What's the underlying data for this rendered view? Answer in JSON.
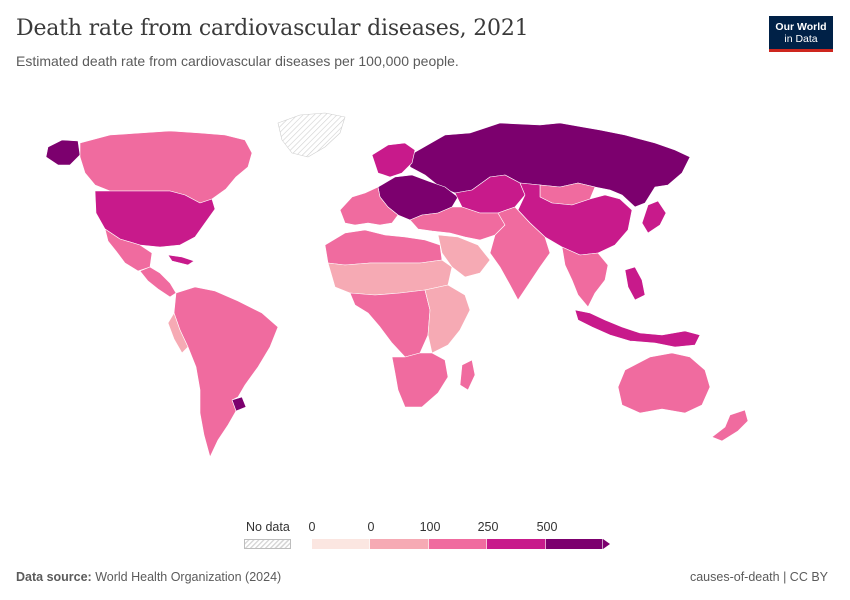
{
  "header": {
    "title": "Death rate from cardiovascular diseases, 2021",
    "subtitle": "Estimated death rate from cardiovascular diseases per 100,000 people.",
    "logo_line1": "Our World",
    "logo_line2": "in Data"
  },
  "legend": {
    "no_data_label": "No data",
    "ticks": [
      "0",
      "0",
      "100",
      "250",
      "500"
    ],
    "colors": [
      "#fbe6e1",
      "#f6aab4",
      "#f06b9f",
      "#c81a8b",
      "#7c006e"
    ],
    "no_data_color": "#dddddd"
  },
  "map_data": {
    "regions": [
      {
        "name": "Russia",
        "level": 4
      },
      {
        "name": "Eastern Europe",
        "level": 4
      },
      {
        "name": "Alaska",
        "level": 4
      },
      {
        "name": "Uruguay",
        "level": 4
      },
      {
        "name": "Canada",
        "level": 2
      },
      {
        "name": "United States",
        "level": 3
      },
      {
        "name": "Mexico",
        "level": 2
      },
      {
        "name": "Central America",
        "level": 2
      },
      {
        "name": "Caribbean",
        "level": 3
      },
      {
        "name": "South America",
        "level": 2
      },
      {
        "name": "Peru",
        "level": 1
      },
      {
        "name": "Greenland",
        "level": -1
      },
      {
        "name": "Western Europe",
        "level": 2
      },
      {
        "name": "Nordics",
        "level": 3
      },
      {
        "name": "Central Asia",
        "level": 3
      },
      {
        "name": "Mongolia",
        "level": 2
      },
      {
        "name": "China",
        "level": 3
      },
      {
        "name": "Japan",
        "level": 3
      },
      {
        "name": "Middle East",
        "level": 2
      },
      {
        "name": "Arabian Peninsula",
        "level": 1
      },
      {
        "name": "South Asia",
        "level": 2
      },
      {
        "name": "Southeast Asia",
        "level": 2
      },
      {
        "name": "Indonesia",
        "level": 3
      },
      {
        "name": "Philippines",
        "level": 3
      },
      {
        "name": "North Africa",
        "level": 2
      },
      {
        "name": "Sahel",
        "level": 1
      },
      {
        "name": "Central Africa",
        "level": 2
      },
      {
        "name": "East Africa",
        "level": 1
      },
      {
        "name": "Southern Africa",
        "level": 2
      },
      {
        "name": "Madagascar",
        "level": 2
      },
      {
        "name": "Australia",
        "level": 2
      },
      {
        "name": "New Zealand",
        "level": 2
      }
    ]
  },
  "footer": {
    "source_label": "Data source:",
    "source_value": "World Health Organization (2024)",
    "right_text": "causes-of-death | CC BY"
  }
}
